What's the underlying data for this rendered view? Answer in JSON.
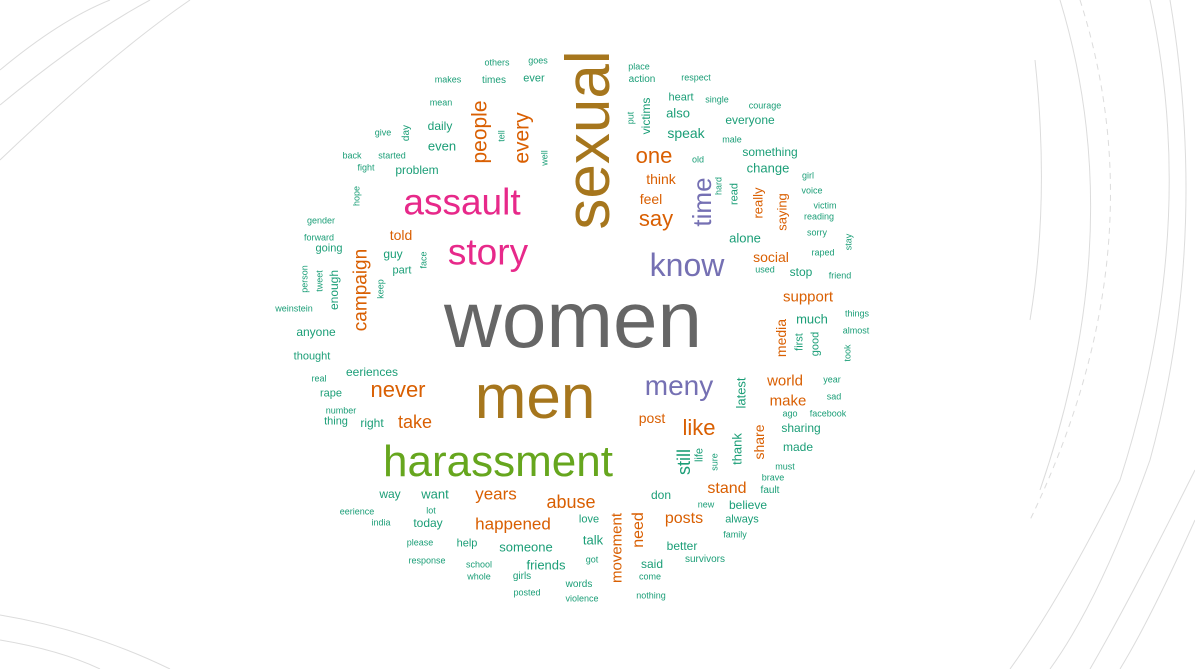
{
  "palette": {
    "green": "#1b9e77",
    "orange": "#d95f02",
    "purple": "#7570b3",
    "magenta": "#e7298a",
    "lime": "#66a61e",
    "gold": "#a6761d",
    "gray": "#666666"
  },
  "words": [
    {
      "text": "women",
      "color": "gray"
    },
    {
      "text": "sexual",
      "color": "gold"
    },
    {
      "text": "men",
      "color": "gold"
    },
    {
      "text": "harassment",
      "color": "lime"
    },
    {
      "text": "assault",
      "color": "magenta"
    },
    {
      "text": "story",
      "color": "magenta"
    },
    {
      "text": "know",
      "color": "purple"
    },
    {
      "text": "meny",
      "color": "purple"
    },
    {
      "text": "time",
      "color": "purple"
    },
    {
      "text": "one",
      "color": "orange"
    },
    {
      "text": "say",
      "color": "orange"
    },
    {
      "text": "people",
      "color": "orange"
    },
    {
      "text": "every",
      "color": "orange"
    },
    {
      "text": "campaign",
      "color": "orange"
    },
    {
      "text": "never",
      "color": "orange"
    },
    {
      "text": "take",
      "color": "orange"
    },
    {
      "text": "like",
      "color": "orange"
    },
    {
      "text": "abuse",
      "color": "orange"
    },
    {
      "text": "years",
      "color": "orange"
    },
    {
      "text": "happened",
      "color": "orange"
    },
    {
      "text": "posts",
      "color": "orange"
    },
    {
      "text": "stand",
      "color": "orange"
    },
    {
      "text": "movement",
      "color": "orange"
    },
    {
      "text": "need",
      "color": "orange"
    },
    {
      "text": "still",
      "color": "green"
    },
    {
      "text": "support",
      "color": "orange"
    },
    {
      "text": "world",
      "color": "orange"
    },
    {
      "text": "make",
      "color": "orange"
    },
    {
      "text": "media",
      "color": "orange"
    },
    {
      "text": "share",
      "color": "orange"
    },
    {
      "text": "social",
      "color": "orange"
    },
    {
      "text": "told",
      "color": "orange"
    },
    {
      "text": "post",
      "color": "orange"
    },
    {
      "text": "think",
      "color": "orange"
    },
    {
      "text": "feel",
      "color": "orange"
    },
    {
      "text": "really",
      "color": "orange"
    },
    {
      "text": "saying",
      "color": "orange"
    },
    {
      "text": "thank",
      "color": "green"
    },
    {
      "text": "latest",
      "color": "green"
    },
    {
      "text": "speak",
      "color": "green"
    },
    {
      "text": "victims",
      "color": "green"
    },
    {
      "text": "also",
      "color": "green"
    },
    {
      "text": "heart",
      "color": "green"
    },
    {
      "text": "everyone",
      "color": "green"
    },
    {
      "text": "something",
      "color": "green"
    },
    {
      "text": "change",
      "color": "green"
    },
    {
      "text": "alone",
      "color": "green"
    },
    {
      "text": "stop",
      "color": "green"
    },
    {
      "text": "much",
      "color": "green"
    },
    {
      "text": "first",
      "color": "green"
    },
    {
      "text": "good",
      "color": "green"
    },
    {
      "text": "sharing",
      "color": "green"
    },
    {
      "text": "made",
      "color": "green"
    },
    {
      "text": "believe",
      "color": "green"
    },
    {
      "text": "always",
      "color": "green"
    },
    {
      "text": "better",
      "color": "green"
    },
    {
      "text": "said",
      "color": "green"
    },
    {
      "text": "don",
      "color": "green"
    },
    {
      "text": "life",
      "color": "green"
    },
    {
      "text": "talk",
      "color": "green"
    },
    {
      "text": "love",
      "color": "green"
    },
    {
      "text": "someone",
      "color": "green"
    },
    {
      "text": "friends",
      "color": "green"
    },
    {
      "text": "help",
      "color": "green"
    },
    {
      "text": "today",
      "color": "green"
    },
    {
      "text": "want",
      "color": "green"
    },
    {
      "text": "way",
      "color": "green"
    },
    {
      "text": "right",
      "color": "green"
    },
    {
      "text": "thing",
      "color": "green"
    },
    {
      "text": "rape",
      "color": "green"
    },
    {
      "text": "eeriences",
      "color": "green"
    },
    {
      "text": "thought",
      "color": "green"
    },
    {
      "text": "anyone",
      "color": "green"
    },
    {
      "text": "enough",
      "color": "green"
    },
    {
      "text": "guy",
      "color": "green"
    },
    {
      "text": "part",
      "color": "green"
    },
    {
      "text": "going",
      "color": "green"
    },
    {
      "text": "problem",
      "color": "green"
    },
    {
      "text": "even",
      "color": "green"
    },
    {
      "text": "daily",
      "color": "green"
    },
    {
      "text": "ever",
      "color": "green"
    },
    {
      "text": "times",
      "color": "green"
    },
    {
      "text": "action",
      "color": "green"
    },
    {
      "text": "goes",
      "color": "green"
    },
    {
      "text": "others",
      "color": "green"
    },
    {
      "text": "makes",
      "color": "green"
    },
    {
      "text": "place",
      "color": "green"
    },
    {
      "text": "respect",
      "color": "green"
    },
    {
      "text": "single",
      "color": "green"
    },
    {
      "text": "courage",
      "color": "green"
    },
    {
      "text": "male",
      "color": "green"
    },
    {
      "text": "old",
      "color": "green"
    },
    {
      "text": "put",
      "color": "green"
    },
    {
      "text": "mean",
      "color": "green"
    },
    {
      "text": "give",
      "color": "green"
    },
    {
      "text": "day",
      "color": "green"
    },
    {
      "text": "tell",
      "color": "green"
    },
    {
      "text": "well",
      "color": "green"
    },
    {
      "text": "back",
      "color": "green"
    },
    {
      "text": "fight",
      "color": "green"
    },
    {
      "text": "started",
      "color": "green"
    },
    {
      "text": "hope",
      "color": "green"
    },
    {
      "text": "gender",
      "color": "green"
    },
    {
      "text": "forward",
      "color": "green"
    },
    {
      "text": "person",
      "color": "green"
    },
    {
      "text": "tweet",
      "color": "green"
    },
    {
      "text": "keep",
      "color": "green"
    },
    {
      "text": "face",
      "color": "green"
    },
    {
      "text": "weinstein",
      "color": "green"
    },
    {
      "text": "real",
      "color": "green"
    },
    {
      "text": "number",
      "color": "green"
    },
    {
      "text": "eerience",
      "color": "green"
    },
    {
      "text": "india",
      "color": "green"
    },
    {
      "text": "lot",
      "color": "green"
    },
    {
      "text": "please",
      "color": "green"
    },
    {
      "text": "response",
      "color": "green"
    },
    {
      "text": "school",
      "color": "green"
    },
    {
      "text": "whole",
      "color": "green"
    },
    {
      "text": "girls",
      "color": "green"
    },
    {
      "text": "posted",
      "color": "green"
    },
    {
      "text": "words",
      "color": "green"
    },
    {
      "text": "violence",
      "color": "green"
    },
    {
      "text": "got",
      "color": "green"
    },
    {
      "text": "come",
      "color": "green"
    },
    {
      "text": "nothing",
      "color": "green"
    },
    {
      "text": "survivors",
      "color": "green"
    },
    {
      "text": "family",
      "color": "green"
    },
    {
      "text": "new",
      "color": "green"
    },
    {
      "text": "sure",
      "color": "green"
    },
    {
      "text": "fault",
      "color": "green"
    },
    {
      "text": "brave",
      "color": "green"
    },
    {
      "text": "must",
      "color": "green"
    },
    {
      "text": "ago",
      "color": "green"
    },
    {
      "text": "facebook",
      "color": "green"
    },
    {
      "text": "sad",
      "color": "green"
    },
    {
      "text": "year",
      "color": "green"
    },
    {
      "text": "took",
      "color": "green"
    },
    {
      "text": "almost",
      "color": "green"
    },
    {
      "text": "things",
      "color": "green"
    },
    {
      "text": "friend",
      "color": "green"
    },
    {
      "text": "raped",
      "color": "green"
    },
    {
      "text": "stay",
      "color": "green"
    },
    {
      "text": "sorry",
      "color": "green"
    },
    {
      "text": "reading",
      "color": "green"
    },
    {
      "text": "victim",
      "color": "green"
    },
    {
      "text": "voice",
      "color": "green"
    },
    {
      "text": "girl",
      "color": "green"
    },
    {
      "text": "hard",
      "color": "green"
    },
    {
      "text": "read",
      "color": "green"
    },
    {
      "text": "used",
      "color": "green"
    }
  ]
}
